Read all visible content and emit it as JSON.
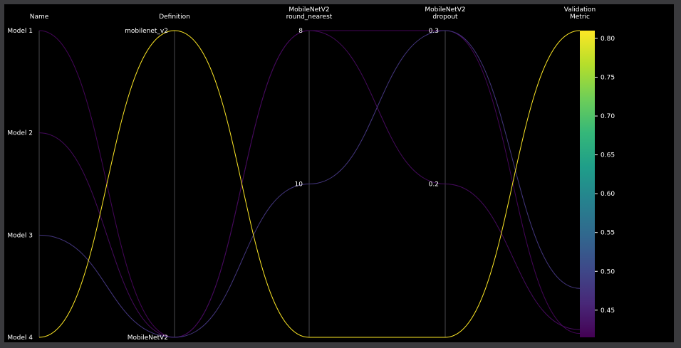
{
  "chart_data": {
    "type": "parallel_coordinates",
    "axes": [
      {
        "key": "name",
        "title_lines": [
          "Name"
        ],
        "kind": "categorical",
        "ticks": [
          "Model 1",
          "Model 2",
          "Model 3",
          "Model 4"
        ]
      },
      {
        "key": "definition",
        "title_lines": [
          "Definition"
        ],
        "kind": "categorical",
        "ticks": [
          "mobilenet_v2",
          "MobileNetV2"
        ]
      },
      {
        "key": "round_nearest",
        "title_lines": [
          "MobileNetV2",
          "round_nearest"
        ],
        "kind": "numeric",
        "top_value": 8,
        "bottom_value": 12,
        "tick_values": [
          8,
          10
        ],
        "tick_labels": [
          "8",
          "10"
        ]
      },
      {
        "key": "dropout",
        "title_lines": [
          "MobileNetV2",
          "dropout"
        ],
        "kind": "numeric",
        "top_value": 0.3,
        "bottom_value": 0.1,
        "tick_values": [
          0.3,
          0.2
        ],
        "tick_labels": [
          "0.3",
          "0.2"
        ]
      },
      {
        "key": "metric",
        "title_lines": [
          "Validation",
          "Metric"
        ],
        "kind": "numeric",
        "top_value": 0.81,
        "bottom_value": 0.415,
        "colorbar": true,
        "tick_values": [
          0.8,
          0.75,
          0.7,
          0.65,
          0.6,
          0.55,
          0.5,
          0.45
        ],
        "tick_labels": [
          "0.80",
          "0.75",
          "0.70",
          "0.65",
          "0.60",
          "0.55",
          "0.50",
          "0.45"
        ]
      }
    ],
    "rows": [
      {
        "name": "Model 4",
        "definition": "mobilenet_v2",
        "round_nearest": 12,
        "dropout": 0.1,
        "metric": 0.81
      },
      {
        "name": "Model 1",
        "definition": "MobileNetV2",
        "round_nearest": 8,
        "dropout": 0.3,
        "metric": 0.42
      },
      {
        "name": "Model 2",
        "definition": "MobileNetV2",
        "round_nearest": 8,
        "dropout": 0.2,
        "metric": 0.425
      },
      {
        "name": "Model 3",
        "definition": "MobileNetV2",
        "round_nearest": 10,
        "dropout": 0.3,
        "metric": 0.478
      }
    ],
    "colormap": "viridis",
    "color_range": [
      0.415,
      0.81
    ],
    "colors": {
      "background": "#000000",
      "frame": "#3a3a3d",
      "axis": "#4a4a4e",
      "text": "#ffffff"
    },
    "viridis_stops": [
      "#440154",
      "#482878",
      "#3e4989",
      "#31688e",
      "#26828e",
      "#1f9e89",
      "#35b779",
      "#6ece58",
      "#b5de2b",
      "#fde725"
    ]
  }
}
